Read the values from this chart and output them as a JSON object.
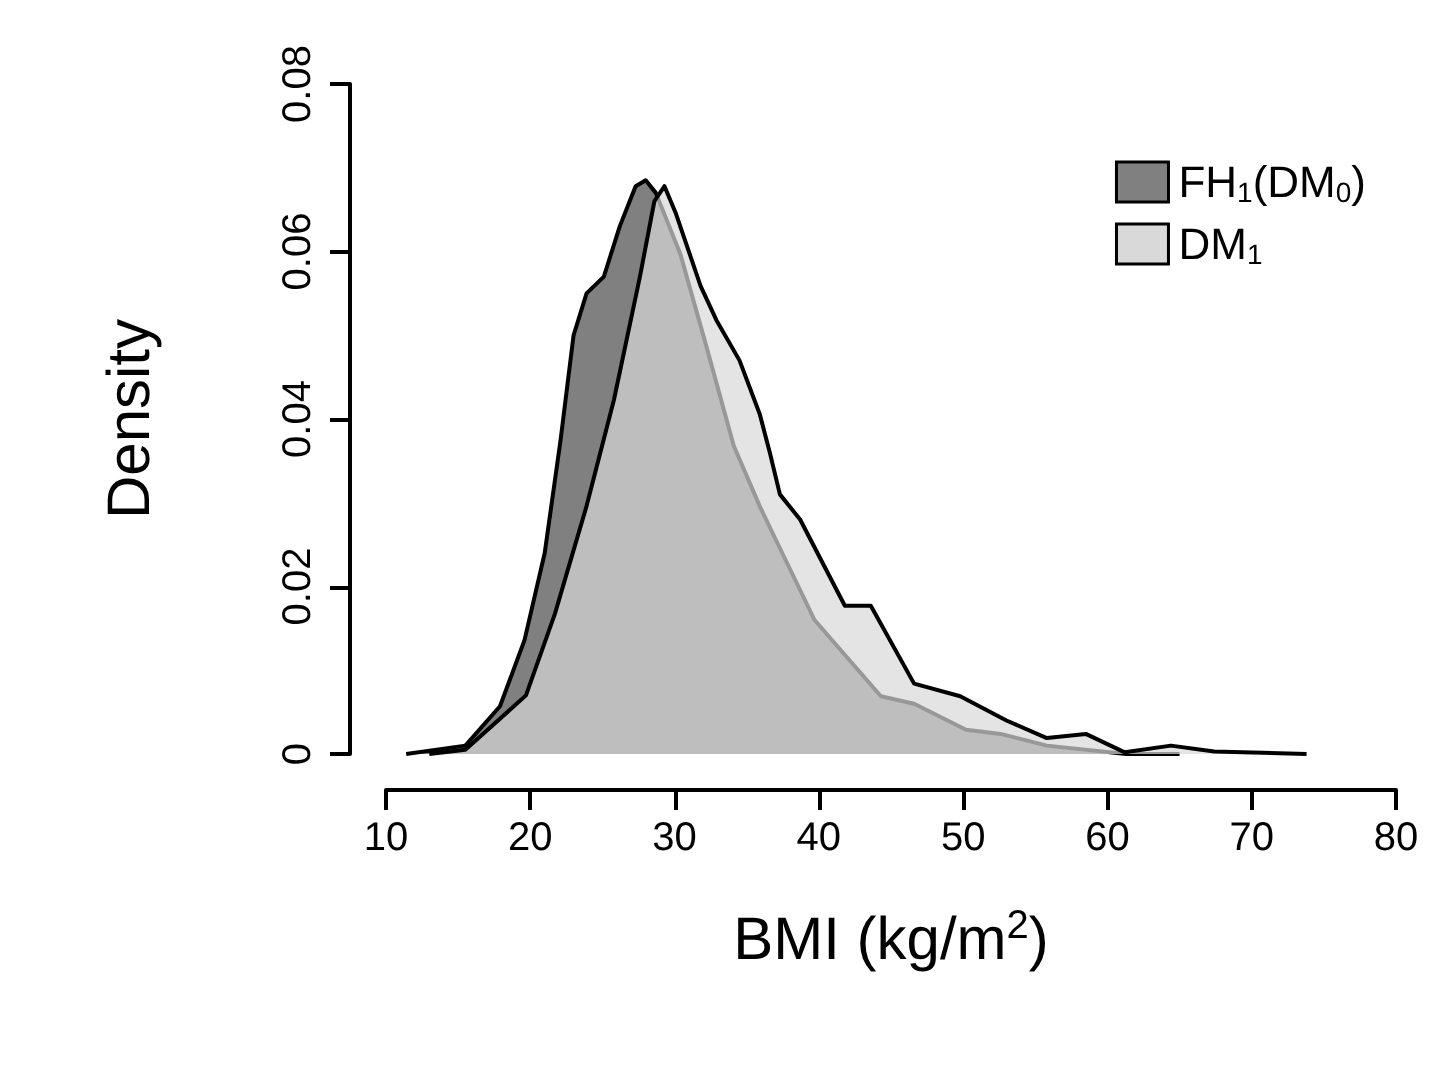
{
  "chart_data": {
    "type": "area",
    "xlabel": "BMI (kg/m$^{2}$)",
    "ylabel": "Density",
    "xlim": [
      10,
      80
    ],
    "xticks": [
      10,
      20,
      30,
      40,
      50,
      60,
      70,
      80
    ],
    "ylim": [
      0,
      0.08
    ],
    "yticks": [
      0,
      0.02,
      0.04,
      0.06,
      0.08
    ],
    "grid": false,
    "legend": "top right",
    "marker": "none",
    "line_style": "solid",
    "series": [
      {
        "name": "FH$_{1}$(DM$_{0}$)",
        "color": "#808080",
        "x": [
          11.4,
          15.5,
          17.9,
          19.6,
          21.0,
          22.1,
          23.0,
          23.9,
          25.1,
          26.2,
          27.3,
          28.0,
          28.7,
          30.4,
          32.2,
          34.1,
          35.9,
          36.9,
          39.7,
          44.3,
          46.6,
          50.2,
          52.6,
          55.8,
          61.3,
          65
        ],
        "values": [
          0,
          0.001,
          0.0057,
          0.0136,
          0.024,
          0.0375,
          0.05,
          0.055,
          0.057,
          0.063,
          0.0678,
          0.0685,
          0.067,
          0.0597,
          0.0487,
          0.0368,
          0.0296,
          0.026,
          0.016,
          0.0069,
          0.006,
          0.0029,
          0.0024,
          0.001,
          0,
          0
        ]
      },
      {
        "name": "DM$_{1}$",
        "color": "#d9d9d9",
        "x": [
          13,
          15.5,
          19.7,
          21.7,
          23.9,
          25.8,
          27.6,
          28.6,
          29.3,
          30.1,
          31.8,
          32.9,
          34.5,
          35.9,
          36.6,
          37.3,
          38.7,
          41.8,
          43.6,
          46.6,
          49.8,
          53.0,
          55.8,
          58.5,
          61.2,
          64.4,
          67.4,
          73.8
        ],
        "values": [
          0,
          0.0005,
          0.007,
          0.0167,
          0.0296,
          0.0423,
          0.057,
          0.066,
          0.0678,
          0.0645,
          0.0559,
          0.0518,
          0.047,
          0.0406,
          0.036,
          0.031,
          0.028,
          0.0177,
          0.0177,
          0.0084,
          0.0069,
          0.004,
          0.0019,
          0.0024,
          0.0002,
          0.001,
          0.0003,
          0
        ]
      }
    ]
  }
}
